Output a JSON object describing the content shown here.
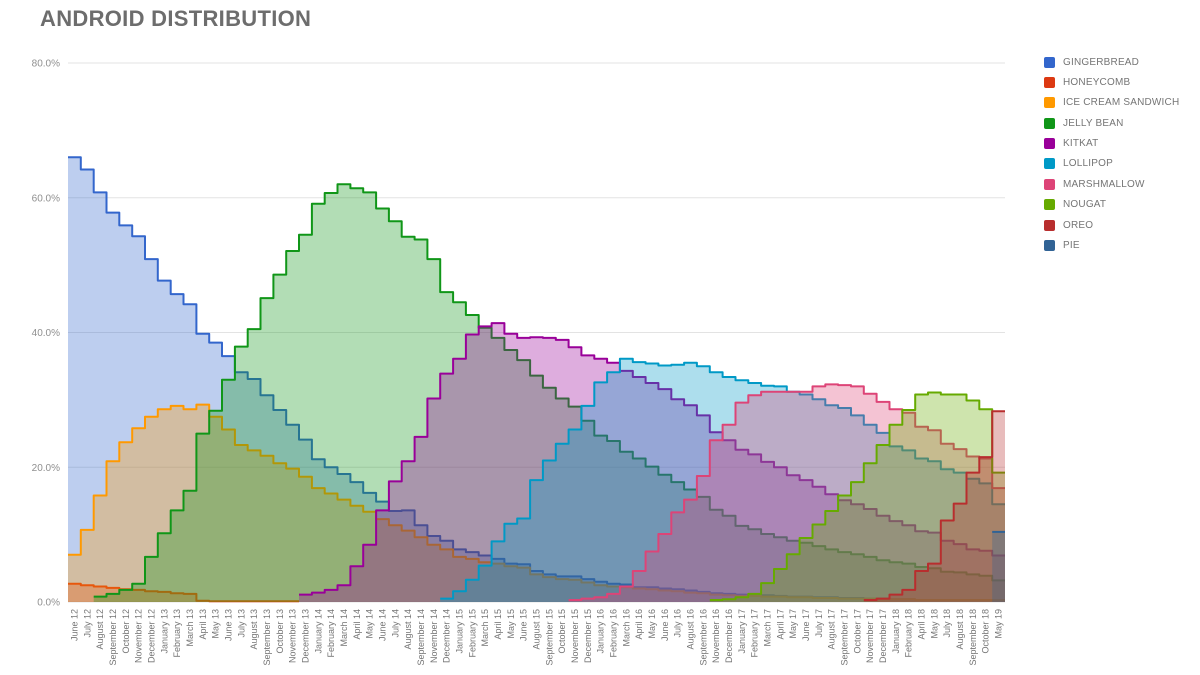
{
  "title": "ANDROID DISTRIBUTION",
  "chart_data": {
    "type": "area",
    "subtype": "stepped",
    "title": "ANDROID DISTRIBUTION",
    "xlabel": "",
    "ylabel": "",
    "ylim": [
      0,
      80
    ],
    "y_ticks": [
      "0.0%",
      "20.0%",
      "40.0%",
      "60.0%",
      "80.0%"
    ],
    "grid": true,
    "legend_position": "right",
    "fill_opacity": 0.32,
    "x": [
      "June 12",
      "July 12",
      "August 12",
      "September 12",
      "October 12",
      "November 12",
      "December 12",
      "January 13",
      "February 13",
      "March 13",
      "April 13",
      "May 13",
      "June 13",
      "July 13",
      "August 13",
      "September 13",
      "October 13",
      "November 13",
      "December 13",
      "January 14",
      "February 14",
      "March 14",
      "April 14",
      "May 14",
      "June 14",
      "July 14",
      "August 14",
      "September 14",
      "November 14",
      "December 14",
      "January 15",
      "February 15",
      "March 15",
      "April 15",
      "May 15",
      "June 15",
      "August 15",
      "September 15",
      "October 15",
      "November 15",
      "December 15",
      "January 16",
      "February 16",
      "March 16",
      "April 16",
      "May 16",
      "June 16",
      "July 16",
      "August 16",
      "September 16",
      "November 16",
      "December 16",
      "January 17",
      "February 17",
      "March 17",
      "April 17",
      "May 17",
      "June 17",
      "July 17",
      "August 17",
      "September 17",
      "October 17",
      "November 17",
      "December 17",
      "January 18",
      "February 18",
      "April 18",
      "May 18",
      "July 18",
      "August 18",
      "September 18",
      "October 18",
      "May 19"
    ],
    "series": [
      {
        "name": "GINGERBREAD",
        "color": "#3366CC",
        "start": 0,
        "values": [
          66.0,
          64.2,
          60.8,
          57.8,
          55.9,
          54.3,
          50.9,
          47.7,
          45.7,
          44.2,
          39.8,
          38.5,
          36.5,
          34.1,
          33.1,
          30.7,
          28.5,
          26.3,
          24.1,
          21.2,
          20.0,
          19.0,
          17.8,
          16.2,
          14.9,
          13.5,
          13.6,
          11.4,
          9.8,
          9.1,
          7.8,
          7.4,
          6.9,
          6.4,
          5.7,
          5.6,
          4.6,
          4.1,
          3.8,
          3.8,
          3.4,
          3.0,
          2.7,
          2.6,
          2.2,
          2.2,
          2.0,
          1.9,
          1.7,
          1.5,
          1.3,
          1.2,
          1.1,
          1.0,
          1.0,
          0.9,
          0.8,
          0.8,
          0.7,
          0.7,
          0.6,
          0.6,
          0.5,
          0.5,
          0.4,
          0.4,
          0.3,
          0.3,
          0.3,
          0.3,
          0.3,
          0.3,
          0.3
        ]
      },
      {
        "name": "HONEYCOMB",
        "color": "#DC3912",
        "start": 0,
        "values": [
          2.7,
          2.5,
          2.3,
          2.1,
          1.9,
          1.8,
          1.6,
          1.5,
          1.3,
          1.2,
          0.2,
          0.1,
          0.1,
          0.1,
          0.1,
          0.1,
          0.1,
          0.1
        ]
      },
      {
        "name": "ICE CREAM SANDWICH",
        "color": "#FF9900",
        "start": 0,
        "values": [
          7.0,
          10.7,
          15.8,
          20.9,
          23.7,
          25.8,
          27.5,
          28.6,
          29.1,
          28.6,
          29.3,
          27.5,
          25.6,
          23.3,
          22.5,
          21.7,
          20.6,
          19.8,
          18.6,
          16.9,
          16.1,
          15.2,
          14.3,
          13.4,
          12.3,
          11.4,
          10.6,
          9.6,
          8.5,
          7.8,
          6.7,
          6.4,
          5.9,
          5.7,
          5.3,
          5.1,
          4.1,
          3.7,
          3.4,
          3.3,
          2.9,
          2.5,
          2.3,
          2.2,
          2.0,
          1.9,
          1.7,
          1.6,
          1.4,
          1.3,
          1.1,
          1.0,
          0.9,
          0.9,
          0.8,
          0.8,
          0.7,
          0.7,
          0.6,
          0.6,
          0.5,
          0.5,
          0.5,
          0.4,
          0.4,
          0.4,
          0.3,
          0.3,
          0.3,
          0.3,
          0.3,
          0.3,
          0.3
        ]
      },
      {
        "name": "JELLY BEAN",
        "color": "#109618",
        "start": 2,
        "values": [
          0.8,
          1.2,
          1.8,
          2.7,
          6.7,
          10.2,
          13.6,
          16.5,
          25.0,
          28.4,
          33.0,
          37.9,
          40.5,
          45.1,
          48.6,
          52.1,
          54.5,
          59.1,
          60.7,
          62.0,
          61.4,
          60.8,
          58.4,
          56.5,
          54.2,
          53.8,
          50.9,
          46.0,
          44.5,
          42.6,
          40.7,
          39.2,
          37.4,
          35.9,
          33.6,
          31.8,
          30.2,
          29.0,
          26.9,
          24.7,
          23.9,
          22.3,
          21.3,
          20.1,
          18.9,
          17.8,
          16.7,
          15.6,
          13.7,
          12.8,
          11.3,
          10.8,
          10.1,
          9.6,
          9.1,
          8.8,
          8.3,
          7.8,
          7.4,
          7.1,
          6.7,
          6.2,
          5.9,
          5.7,
          5.2,
          5.0,
          4.5,
          4.4,
          4.1,
          3.9,
          3.2
        ]
      },
      {
        "name": "KITKAT",
        "color": "#990099",
        "start": 18,
        "values": [
          1.1,
          1.4,
          1.8,
          2.5,
          5.3,
          8.5,
          13.6,
          17.9,
          20.9,
          24.5,
          30.2,
          33.9,
          36.1,
          39.7,
          40.9,
          41.4,
          39.8,
          39.2,
          39.3,
          39.2,
          38.9,
          37.8,
          36.6,
          36.1,
          35.5,
          34.3,
          33.4,
          32.5,
          31.6,
          30.1,
          29.2,
          27.7,
          25.2,
          24.0,
          22.6,
          21.9,
          20.8,
          20.0,
          18.8,
          18.1,
          17.1,
          16.0,
          15.1,
          14.5,
          13.8,
          12.8,
          12.0,
          11.4,
          10.5,
          10.3,
          9.1,
          8.6,
          7.8,
          7.6,
          6.9
        ]
      },
      {
        "name": "LOLLIPOP",
        "color": "#0099C6",
        "start": 29,
        "values": [
          0.5,
          1.6,
          3.3,
          5.4,
          9.0,
          11.6,
          12.4,
          18.1,
          21.0,
          23.5,
          25.6,
          29.1,
          32.6,
          34.1,
          36.1,
          35.6,
          35.4,
          35.1,
          35.2,
          35.5,
          35.0,
          34.1,
          33.4,
          32.9,
          32.5,
          32.1,
          32.0,
          31.2,
          30.8,
          30.1,
          29.2,
          28.8,
          27.7,
          26.3,
          25.1,
          23.1,
          22.5,
          21.3,
          20.9,
          19.7,
          19.2,
          18.3,
          17.6,
          14.5
        ]
      },
      {
        "name": "MARSHMALLOW",
        "color": "#DD4477",
        "start": 39,
        "values": [
          0.3,
          0.5,
          0.7,
          1.2,
          2.3,
          4.6,
          7.5,
          10.1,
          13.3,
          15.2,
          18.7,
          24.0,
          26.3,
          29.6,
          30.7,
          31.2,
          31.2,
          31.2,
          31.2,
          32.0,
          32.3,
          32.2,
          32.0,
          30.9,
          29.7,
          28.6,
          28.1,
          26.0,
          25.5,
          23.5,
          22.7,
          21.6,
          21.3,
          16.9
        ]
      },
      {
        "name": "NOUGAT",
        "color": "#66AA00",
        "start": 50,
        "values": [
          0.3,
          0.4,
          0.7,
          1.2,
          2.8,
          4.9,
          7.1,
          9.5,
          11.5,
          13.5,
          15.8,
          17.8,
          20.6,
          23.3,
          26.3,
          28.5,
          30.8,
          31.1,
          30.8,
          30.8,
          29.9,
          28.6,
          19.2
        ]
      },
      {
        "name": "OREO",
        "color": "#B82E2E",
        "start": 62,
        "values": [
          0.3,
          0.5,
          1.1,
          1.8,
          4.6,
          5.7,
          12.1,
          14.6,
          19.2,
          21.5,
          28.3
        ]
      },
      {
        "name": "PIE",
        "color": "#316395",
        "start": 72,
        "values": [
          10.4
        ]
      }
    ]
  }
}
